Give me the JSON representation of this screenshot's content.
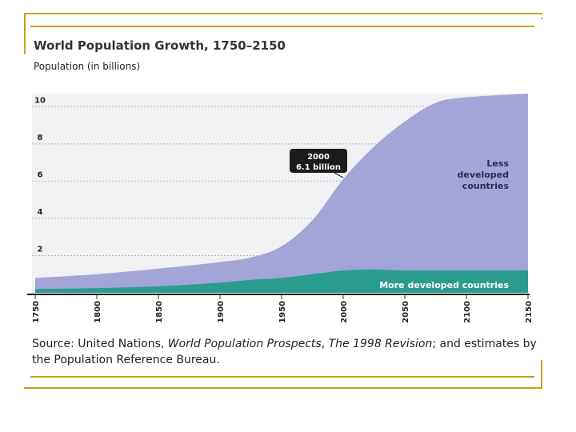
{
  "header": {
    "title": "World Population Growth, 1750–2150",
    "y_axis_label": "Population (in billions)",
    "corner_mark": "-"
  },
  "footer": {
    "source_prefix": "Source: United Nations, ",
    "source_title": "World Population Prospects",
    "source_sep": ", ",
    "source_revision": "The 1998 Revision",
    "source_suffix": "; and estimates by the Population Reference Bureau."
  },
  "colors": {
    "less_developed": "#a3a5d8",
    "more_developed": "#2a9c8e",
    "frame": "#c8a018",
    "callout_bg": "#1c1c1c"
  },
  "chart_data": {
    "type": "area",
    "title": "World Population Growth, 1750–2150",
    "xlabel": "",
    "ylabel": "Population (in billions)",
    "xlim": [
      1750,
      2150
    ],
    "ylim": [
      0,
      11
    ],
    "x_ticks": [
      "1750",
      "1800",
      "1850",
      "1900",
      "1950",
      "2000",
      "2050",
      "2100",
      "2150"
    ],
    "y_ticks": [
      "0",
      "2",
      "4",
      "6",
      "8",
      "10"
    ],
    "grid": true,
    "stacked": true,
    "x": [
      1750,
      1800,
      1850,
      1900,
      1925,
      1950,
      1975,
      2000,
      2025,
      2050,
      2075,
      2100,
      2150
    ],
    "series": [
      {
        "name": "More developed countries",
        "values": [
          0.2,
          0.25,
          0.35,
          0.55,
          0.7,
          0.8,
          1.0,
          1.2,
          1.25,
          1.2,
          1.2,
          1.2,
          1.2
        ]
      },
      {
        "name": "Less developed countries",
        "values": [
          0.6,
          0.75,
          0.95,
          1.1,
          1.2,
          1.7,
          2.9,
          4.9,
          6.6,
          8.0,
          9.0,
          9.3,
          9.5
        ]
      }
    ],
    "annotations": [
      {
        "text_line1": "2000",
        "text_line2": "6.1 billion",
        "x": 2000,
        "y": 6.1
      }
    ],
    "series_labels": {
      "less_line1": "Less",
      "less_line2": "developed",
      "less_line3": "countries",
      "more": "More developed countries"
    }
  }
}
